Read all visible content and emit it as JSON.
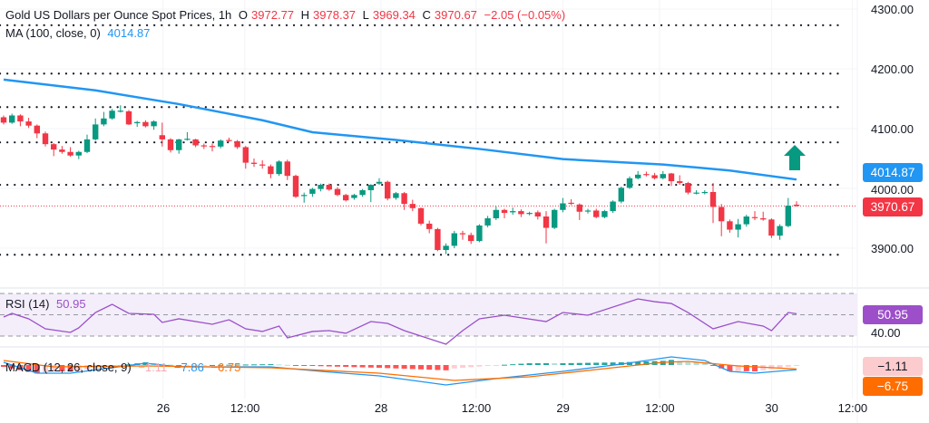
{
  "header": {
    "title": "Gold US Dollars per Ounce Spot Prices, 1h",
    "o_label": "O",
    "o_value": "3972.77",
    "h_label": "H",
    "h_value": "3978.37",
    "l_label": "L",
    "l_value": "3969.34",
    "c_label": "C",
    "c_value": "3970.67",
    "change": "−2.05 (−0.05%)",
    "ma_label": "MA (100, close, 0)",
    "ma_value": "4014.87"
  },
  "rsi_legend": {
    "label": "RSI (14)",
    "value": "50.95"
  },
  "macd_legend": {
    "label": "MACD (12, 26, close, 9)",
    "hist": "−1.11",
    "macd": "−7.86",
    "signal": "−6.75"
  },
  "price_axis": [
    "4300.00",
    "4200.00",
    "4100.00",
    "4000.00",
    "3900.00"
  ],
  "badges": {
    "ma": "4014.87",
    "last": "3970.67",
    "rsi": "50.95",
    "rsi_axis": "40.00",
    "hist": "−1.11",
    "signal": "−6.75"
  },
  "colors": {
    "up": "#089981",
    "down": "#f23645",
    "ma": "#2196f3",
    "rsi": "#9c4fc9",
    "macd": "#2196f3",
    "signal": "#ff6d00",
    "arrow": "#089981"
  },
  "chart_data": [
    {
      "type": "candlestick",
      "title": "Gold US Dollars per Ounce Spot Prices, 1h",
      "ylim": [
        3850,
        4310
      ],
      "yticks": [
        4300,
        4200,
        4100,
        4000,
        3900
      ],
      "xticks": [
        {
          "label": "26",
          "index": 19.1
        },
        {
          "label": "12:00",
          "index": 28.9
        },
        {
          "label": "28",
          "index": 45.2
        },
        {
          "label": "12:00",
          "index": 56.6
        },
        {
          "label": "29",
          "index": 67
        },
        {
          "label": "12:00",
          "index": 78.6
        },
        {
          "label": "30",
          "index": 92
        },
        {
          "label": "12:00",
          "index": 101.7
        }
      ],
      "horizontal_levels": [
        4273,
        4192,
        4136,
        4077,
        4006,
        3889
      ],
      "last_price": 3970.67,
      "ohlc": [
        [
          4119,
          4122,
          4107,
          4110
        ],
        [
          4110,
          4125,
          4108,
          4122
        ],
        [
          4122,
          4124,
          4104,
          4112
        ],
        [
          4112,
          4118,
          4101,
          4105
        ],
        [
          4105,
          4107,
          4084,
          4092
        ],
        [
          4092,
          4095,
          4070,
          4074
        ],
        [
          4074,
          4076,
          4054,
          4065
        ],
        [
          4065,
          4071,
          4058,
          4061
        ],
        [
          4061,
          4069,
          4053,
          4055
        ],
        [
          4055,
          4063,
          4049,
          4061
        ],
        [
          4061,
          4090,
          4059,
          4082
        ],
        [
          4082,
          4117,
          4080,
          4107
        ],
        [
          4107,
          4128,
          4104,
          4117
        ],
        [
          4117,
          4133,
          4115,
          4130
        ],
        [
          4130,
          4139,
          4127,
          4130
        ],
        [
          4129,
          4131,
          4106,
          4107
        ],
        [
          4109,
          4113,
          4103,
          4111
        ],
        [
          4111,
          4114,
          4102,
          4104
        ],
        [
          4104,
          4114,
          4098,
          4112
        ],
        [
          4089,
          4110,
          4070,
          4082
        ],
        [
          4082,
          4084,
          4060,
          4064
        ],
        [
          4064,
          4083,
          4058,
          4082
        ],
        [
          4082,
          4094,
          4080,
          4083
        ],
        [
          4082,
          4083,
          4069,
          4072
        ],
        [
          4072,
          4075,
          4066,
          4071
        ],
        [
          4071,
          4075,
          4062,
          4070
        ],
        [
          4070,
          4082,
          4067,
          4080
        ],
        [
          4081,
          4085,
          4078,
          4080
        ],
        [
          4079,
          4081,
          4066,
          4069
        ],
        [
          4069,
          4071,
          4033,
          4043
        ],
        [
          4043,
          4050,
          4036,
          4041
        ],
        [
          4040,
          4047,
          4033,
          4039
        ],
        [
          4037,
          4040,
          4017,
          4024
        ],
        [
          4024,
          4047,
          4021,
          4045
        ],
        [
          4045,
          4048,
          4014,
          4021
        ],
        [
          4021,
          4023,
          3984,
          3986
        ],
        [
          3988,
          3993,
          3976,
          3989
        ],
        [
          3991,
          4001,
          3986,
          3999
        ],
        [
          3999,
          4008,
          3995,
          4006
        ],
        [
          4006,
          4008,
          3996,
          3998
        ],
        [
          3999,
          4002,
          3987,
          3989
        ],
        [
          3989,
          3991,
          3978,
          3980
        ],
        [
          3984,
          3991,
          3981,
          3989
        ],
        [
          3989,
          3999,
          3986,
          3997
        ],
        [
          3997,
          4007,
          3977,
          4006
        ],
        [
          4008,
          4017,
          4006,
          4011
        ],
        [
          4011,
          4013,
          3980,
          3983
        ],
        [
          3984,
          3994,
          3981,
          3992
        ],
        [
          3992,
          3994,
          3964,
          3974
        ],
        [
          3974,
          3981,
          3962,
          3967
        ],
        [
          3967,
          3968,
          3938,
          3941
        ],
        [
          3941,
          3946,
          3925,
          3932
        ],
        [
          3932,
          3934,
          3895,
          3897
        ],
        [
          3897,
          3908,
          3890,
          3904
        ],
        [
          3904,
          3929,
          3900,
          3925
        ],
        [
          3925,
          3929,
          3914,
          3924
        ],
        [
          3922,
          3926,
          3907,
          3912
        ],
        [
          3912,
          3940,
          3910,
          3938
        ],
        [
          3938,
          3954,
          3935,
          3950
        ],
        [
          3950,
          3970,
          3947,
          3964
        ],
        [
          3964,
          3966,
          3950,
          3959
        ],
        [
          3960,
          3968,
          3956,
          3962
        ],
        [
          3962,
          3965,
          3952,
          3957
        ],
        [
          3958,
          3961,
          3955,
          3959
        ],
        [
          3960,
          3963,
          3948,
          3953
        ],
        [
          3953,
          3962,
          3908,
          3934
        ],
        [
          3934,
          3966,
          3932,
          3964
        ],
        [
          3964,
          3984,
          3960,
          3975
        ],
        [
          3976,
          3982,
          3972,
          3975
        ],
        [
          3973,
          3975,
          3947,
          3961
        ],
        [
          3962,
          3966,
          3958,
          3963
        ],
        [
          3963,
          3966,
          3950,
          3952
        ],
        [
          3952,
          3964,
          3950,
          3962
        ],
        [
          3962,
          3980,
          3959,
          3978
        ],
        [
          3978,
          4003,
          3975,
          4001
        ],
        [
          4001,
          4020,
          3999,
          4017
        ],
        [
          4017,
          4029,
          4015,
          4023
        ],
        [
          4024,
          4028,
          4020,
          4023
        ],
        [
          4022,
          4026,
          4015,
          4017
        ],
        [
          4017,
          4029,
          4015,
          4024
        ],
        [
          4025,
          4026,
          4004,
          4012
        ],
        [
          4012,
          4022,
          4006,
          4009
        ],
        [
          4009,
          4011,
          3990,
          3993
        ],
        [
          3993,
          3997,
          3990,
          3993
        ],
        [
          3993,
          3997,
          3990,
          3994
        ],
        [
          3994,
          4009,
          3942,
          3969
        ],
        [
          3969,
          3974,
          3920,
          3945
        ],
        [
          3945,
          3948,
          3926,
          3931
        ],
        [
          3931,
          3949,
          3918,
          3940
        ],
        [
          3940,
          3956,
          3936,
          3953
        ],
        [
          3952,
          3962,
          3947,
          3951
        ],
        [
          3950,
          3961,
          3946,
          3948
        ],
        [
          3948,
          3950,
          3917,
          3921
        ],
        [
          3921,
          3940,
          3914,
          3937
        ],
        [
          3937,
          3984,
          3935,
          3971
        ],
        [
          3972.77,
          3978.37,
          3969.34,
          3970.67
        ]
      ],
      "overlays": [
        {
          "name": "MA (100, close, 0)",
          "points": [
            [
              0,
              4182
            ],
            [
              11,
              4164
            ],
            [
              21,
              4141
            ],
            [
              31,
              4114
            ],
            [
              37,
              4094
            ],
            [
              47,
              4081
            ],
            [
              57,
              4066
            ],
            [
              67,
              4049
            ],
            [
              79,
              4040
            ],
            [
              87,
              4030
            ],
            [
              95,
              4014.87
            ]
          ]
        }
      ]
    },
    {
      "type": "line",
      "title": "RSI (14)",
      "ylim": [
        20,
        75
      ],
      "bands": [
        70,
        50,
        30
      ],
      "tick_labels": [
        "40.00"
      ],
      "points": [
        [
          0,
          47.9
        ],
        [
          1,
          51.3
        ],
        [
          3,
          46.2
        ],
        [
          5,
          36.8
        ],
        [
          8,
          33.4
        ],
        [
          9,
          37.7
        ],
        [
          11,
          52.1
        ],
        [
          13,
          59.8
        ],
        [
          15,
          51.3
        ],
        [
          18,
          50.4
        ],
        [
          19,
          42.8
        ],
        [
          21,
          46.2
        ],
        [
          25,
          41.1
        ],
        [
          27,
          45.3
        ],
        [
          29,
          36.8
        ],
        [
          31,
          34.3
        ],
        [
          33,
          39.4
        ],
        [
          34,
          28.3
        ],
        [
          37,
          34.3
        ],
        [
          39,
          35.1
        ],
        [
          41,
          32.6
        ],
        [
          44,
          43.6
        ],
        [
          46,
          41.9
        ],
        [
          48,
          35.1
        ],
        [
          52,
          24.9
        ],
        [
          53,
          22.3
        ],
        [
          55,
          35.1
        ],
        [
          57,
          46.2
        ],
        [
          60,
          49.6
        ],
        [
          65,
          43.6
        ],
        [
          67,
          52.1
        ],
        [
          70,
          49.6
        ],
        [
          76,
          64.9
        ],
        [
          78,
          62.3
        ],
        [
          80,
          60.6
        ],
        [
          82,
          52.1
        ],
        [
          85,
          36.8
        ],
        [
          88,
          43.6
        ],
        [
          91,
          39.4
        ],
        [
          92,
          35.1
        ],
        [
          94,
          52.1
        ],
        [
          95,
          50.95
        ]
      ]
    },
    {
      "type": "line",
      "title": "MACD (12, 26, close, 9)",
      "series": [
        {
          "name": "MACD",
          "points": [
            [
              0,
              4.6
            ],
            [
              4,
              -13.8
            ],
            [
              8,
              -13.8
            ],
            [
              17,
              3.1
            ],
            [
              21,
              -3.1
            ],
            [
              32,
              -3.1
            ],
            [
              38,
              -10.8
            ],
            [
              45,
              -18.5
            ],
            [
              53,
              -33.8
            ],
            [
              59,
              -23.1
            ],
            [
              67,
              -10.8
            ],
            [
              74,
              1.5
            ],
            [
              80,
              13.8
            ],
            [
              84,
              7.7
            ],
            [
              87,
              -10.8
            ],
            [
              90,
              -13.8
            ],
            [
              95,
              -7.86
            ]
          ]
        },
        {
          "name": "Signal",
          "points": [
            [
              0,
              7.7
            ],
            [
              6,
              -3.1
            ],
            [
              17,
              -1.5
            ],
            [
              32,
              -4.6
            ],
            [
              45,
              -13.8
            ],
            [
              54,
              -26.2
            ],
            [
              63,
              -20
            ],
            [
              71,
              -7.7
            ],
            [
              79,
              4.6
            ],
            [
              82,
              6.2
            ],
            [
              88,
              -1.5
            ],
            [
              95,
              -6.75
            ]
          ]
        }
      ],
      "histogram_last": -1.11
    }
  ]
}
